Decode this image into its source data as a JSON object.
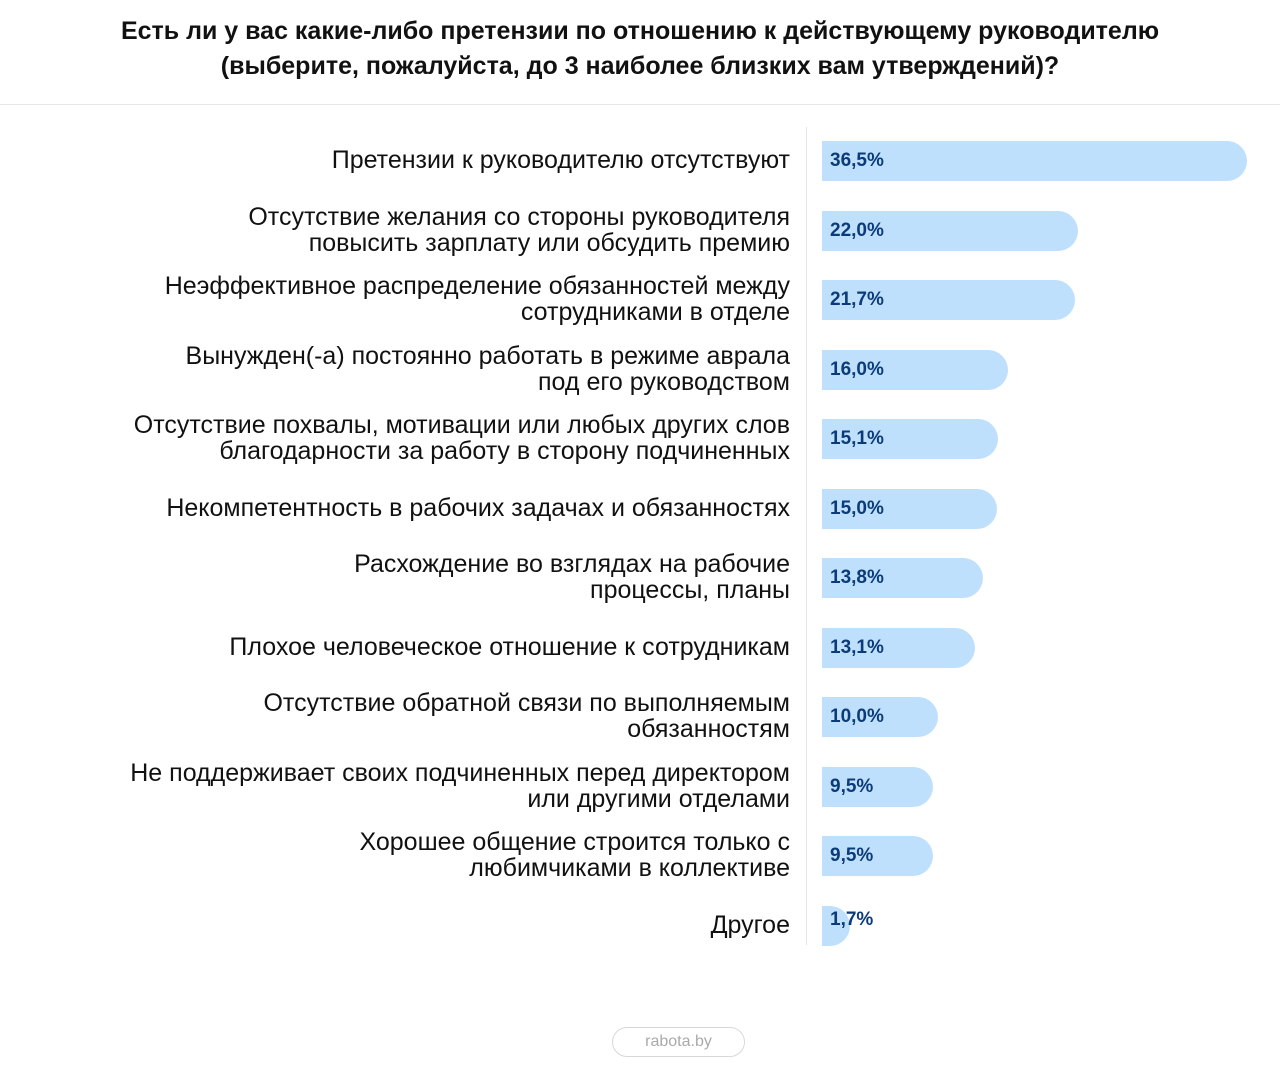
{
  "chart_data": {
    "type": "bar",
    "orientation": "horizontal",
    "title": [
      "Есть ли у вас какие-либо претензии по отношению к действующему руководителю",
      "(выберите, пожалуйста, до 3 наиболее близких вам утверждений)?"
    ],
    "categories": [
      [
        "Претензии к руководителю отсутствуют"
      ],
      [
        "Отсутствие желания со стороны руководителя",
        "повысить зарплату или обсудить премию"
      ],
      [
        "Неэффективное распределение обязанностей между",
        "сотрудниками в отделе"
      ],
      [
        "Вынужден(-а) постоянно работать в режиме аврала",
        "под его руководством"
      ],
      [
        "Отсутствие похвалы, мотивации или любых других слов",
        "благодарности за работу в сторону подчиненных"
      ],
      [
        "Некомпетентность в рабочих задачах и обязанностях"
      ],
      [
        "Расхождение во взглядах на рабочие",
        "процессы, планы"
      ],
      [
        "Плохое человеческое отношение к сотрудникам "
      ],
      [
        "Отсутствие обратной связи по выполняемым",
        "обязанностям"
      ],
      [
        "Не поддерживает своих подчиненных перед директором",
        "или другими отделами"
      ],
      [
        "Хорошее общение строится только с",
        "любимчиками в коллективе"
      ],
      [
        "Другое"
      ]
    ],
    "values": [
      36.5,
      22.0,
      21.7,
      16.0,
      15.1,
      15.0,
      13.8,
      13.1,
      10.0,
      9.5,
      9.5,
      1.7
    ],
    "value_labels": [
      "36,5%",
      "22,0%",
      "21,7%",
      "16,0%",
      "15,1%",
      "15,0%",
      "13,8%",
      "13,1%",
      "10,0%",
      "9,5%",
      "9,5%",
      "1,7%"
    ],
    "unit": "%",
    "xlim": [
      0,
      36.5
    ],
    "grid": false,
    "legend": "none",
    "bar_color": "#bfe0fd",
    "value_color": "#0b3b78"
  },
  "footer": {
    "brand": "rabota.by"
  }
}
